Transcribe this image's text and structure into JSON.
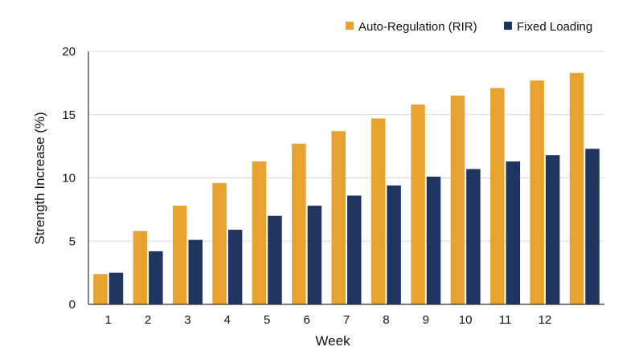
{
  "chart_data": {
    "type": "bar",
    "title": "",
    "xlabel": "Week",
    "ylabel": "Strength Increase (%)",
    "ylim": [
      0,
      20
    ],
    "yticks": [
      0,
      5,
      10,
      15,
      20
    ],
    "grid": "horizontal",
    "legend_position": "top-right",
    "categories": [
      "1",
      "2",
      "3",
      "4",
      "5",
      "6",
      "7",
      "8",
      "9",
      "10",
      "11",
      "12",
      ""
    ],
    "series": [
      {
        "name": "Auto-Regulation (RIR)",
        "color": "#E8A22F",
        "values": [
          2.4,
          5.8,
          7.8,
          9.6,
          11.3,
          12.7,
          13.7,
          14.7,
          15.8,
          16.5,
          17.1,
          17.7,
          18.3
        ]
      },
      {
        "name": "Fixed Loading",
        "color": "#1F3560",
        "values": [
          2.5,
          4.2,
          5.1,
          5.9,
          7.0,
          7.8,
          8.6,
          9.4,
          10.1,
          10.7,
          11.3,
          11.8,
          12.3
        ]
      }
    ]
  }
}
